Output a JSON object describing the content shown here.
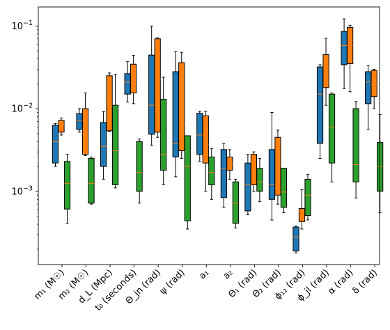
{
  "chart_data": {
    "type": "boxplot",
    "y_scale": "log",
    "ylim": [
      0.00013,
      0.17
    ],
    "y_ticks": [
      {
        "value": 0.001,
        "base": "10",
        "exp": "−3"
      },
      {
        "value": 0.01,
        "base": "10",
        "exp": "−2"
      },
      {
        "value": 0.1,
        "base": "10",
        "exp": "−1"
      }
    ],
    "grid": false,
    "legend": "none",
    "median_color": "#ff7f0e",
    "series_colors": [
      "#1f77b4",
      "#ff7f0e",
      "#2ca02c"
    ],
    "categories": [
      {
        "name": "m1",
        "label": "m₁ (M☉)"
      },
      {
        "name": "m2",
        "label": "m₂ (M☉)"
      },
      {
        "name": "dl",
        "label": "d_L (Mpc)"
      },
      {
        "name": "t0",
        "label": "t₀ (seconds)"
      },
      {
        "name": "theta-jn",
        "label": "Θ_jn (rad)"
      },
      {
        "name": "psi",
        "label": "ψ (rad)"
      },
      {
        "name": "a1",
        "label": "a₁"
      },
      {
        "name": "a2",
        "label": "a₂"
      },
      {
        "name": "theta1",
        "label": "Θ₁ (rad)"
      },
      {
        "name": "theta2",
        "label": "Θ₂ (rad)"
      },
      {
        "name": "phi12",
        "label": "ϕ₁₂ (rad)"
      },
      {
        "name": "phi-jl",
        "label": "ϕ_jl (rad)"
      },
      {
        "name": "alpha",
        "label": "α (rad)"
      },
      {
        "name": "delta",
        "label": "δ (rad)"
      }
    ],
    "series": [
      {
        "boxes": [
          {
            "whislo": 0.002,
            "q1": 0.0022,
            "med": 0.004,
            "q3": 0.0063,
            "whishi": 0.0066
          },
          {
            "whislo": 0.0052,
            "q1": 0.0056,
            "med": 0.0072,
            "q3": 0.0087,
            "whishi": 0.01
          },
          {
            "whislo": 0.0014,
            "q1": 0.002,
            "med": 0.0035,
            "q3": 0.0068,
            "whishi": 0.0092
          },
          {
            "whislo": 0.012,
            "q1": 0.015,
            "med": 0.021,
            "q3": 0.0265,
            "whishi": 0.037
          },
          {
            "whislo": 0.0036,
            "q1": 0.0049,
            "med": 0.011,
            "q3": 0.0445,
            "whishi": 0.1
          },
          {
            "whislo": 0.0015,
            "q1": 0.0026,
            "med": 0.0038,
            "q3": 0.028,
            "whishi": 0.049
          },
          {
            "whislo": 0.0023,
            "q1": 0.0028,
            "med": 0.0048,
            "q3": 0.0088,
            "whishi": 0.0093
          },
          {
            "whislo": 0.00064,
            "q1": 0.00084,
            "med": 0.0019,
            "q3": 0.0032,
            "whishi": 0.0038
          },
          {
            "whislo": 0.00052,
            "q1": 0.00058,
            "med": 0.0012,
            "q3": 0.0022,
            "whishi": 0.0028
          },
          {
            "whislo": 0.00045,
            "q1": 0.0008,
            "med": 0.0012,
            "q3": 0.0032,
            "whishi": 0.009
          },
          {
            "whislo": 0.00018,
            "q1": 0.00019,
            "med": 0.00028,
            "q3": 0.00037,
            "whishi": 0.00038
          },
          {
            "whislo": 0.0025,
            "q1": 0.0038,
            "med": 0.015,
            "q3": 0.032,
            "whishi": 0.034
          },
          {
            "whislo": 0.0175,
            "q1": 0.034,
            "med": 0.058,
            "q3": 0.086,
            "whishi": 0.122
          },
          {
            "whislo": 0.0056,
            "q1": 0.0115,
            "med": 0.021,
            "q3": 0.028,
            "whishi": 0.033
          }
        ]
      },
      {
        "boxes": [
          {
            "whislo": 0.0048,
            "q1": 0.0052,
            "med": 0.0065,
            "q3": 0.0072,
            "whishi": 0.0077
          },
          {
            "whislo": 0.0027,
            "q1": 0.0028,
            "med": 0.005,
            "q3": 0.01,
            "whishi": 0.0155
          },
          {
            "whislo": 0.0053,
            "q1": 0.0054,
            "med": 0.012,
            "q3": 0.025,
            "whishi": 0.027
          },
          {
            "whislo": 0.0115,
            "q1": 0.0155,
            "med": 0.0255,
            "q3": 0.0345,
            "whishi": 0.044
          },
          {
            "whislo": 0.0045,
            "q1": 0.0052,
            "med": 0.0225,
            "q3": 0.07,
            "whishi": 0.072
          },
          {
            "whislo": 0.0025,
            "q1": 0.0031,
            "med": 0.0065,
            "q3": 0.036,
            "whishi": 0.048
          },
          {
            "whislo": 0.001,
            "q1": 0.0022,
            "med": 0.0037,
            "q3": 0.0082,
            "whishi": 0.0093
          },
          {
            "whislo": 0.0014,
            "q1": 0.0018,
            "med": 0.0021,
            "q3": 0.0026,
            "whishi": 0.0032
          },
          {
            "whislo": 0.001,
            "q1": 0.0012,
            "med": 0.0023,
            "q3": 0.0028,
            "whishi": 0.003
          },
          {
            "whislo": 0.0007,
            "q1": 0.0009,
            "med": 0.0011,
            "q3": 0.0045,
            "whishi": 0.0055
          },
          {
            "whislo": 0.00035,
            "q1": 0.00043,
            "med": 0.00057,
            "q3": 0.00062,
            "whishi": 0.00105
          },
          {
            "whislo": 0.011,
            "q1": 0.018,
            "med": 0.031,
            "q3": 0.045,
            "whishi": 0.071
          },
          {
            "whislo": 0.016,
            "q1": 0.035,
            "med": 0.058,
            "q3": 0.096,
            "whishi": 0.102
          },
          {
            "whislo": 0.01,
            "q1": 0.014,
            "med": 0.0195,
            "q3": 0.029,
            "whishi": 0.03
          }
        ]
      },
      {
        "boxes": [
          {
            "whislo": 0.00041,
            "q1": 0.00061,
            "med": 0.00125,
            "q3": 0.0023,
            "whishi": 0.0028
          },
          {
            "whislo": 0.0007,
            "q1": 0.00072,
            "med": 0.00125,
            "q3": 0.0025,
            "whishi": 0.0026
          },
          {
            "whislo": 0.0011,
            "q1": 0.0012,
            "med": 0.0031,
            "q3": 0.011,
            "whishi": 0.026
          },
          {
            "whislo": 0.00072,
            "q1": 0.001,
            "med": 0.0017,
            "q3": 0.004,
            "whishi": 0.0043
          },
          {
            "whislo": 0.0012,
            "q1": 0.0018,
            "med": 0.0028,
            "q3": 0.013,
            "whishi": 0.024
          },
          {
            "whislo": 0.00035,
            "q1": 0.00044,
            "med": 0.002,
            "q3": 0.0047,
            "whishi": 0.0047
          },
          {
            "whislo": 0.0008,
            "q1": 0.0012,
            "med": 0.0017,
            "q3": 0.0026,
            "whishi": 0.0033
          },
          {
            "whislo": 0.00036,
            "q1": 0.00041,
            "med": 0.00072,
            "q3": 0.0013,
            "whishi": 0.0014
          },
          {
            "whislo": 0.00075,
            "q1": 0.001,
            "med": 0.0013,
            "q3": 0.0019,
            "whishi": 0.0025
          },
          {
            "whislo": 0.00055,
            "q1": 0.00064,
            "med": 0.00098,
            "q3": 0.0019,
            "whishi": 0.0019
          },
          {
            "whislo": 0.00045,
            "q1": 0.00051,
            "med": 0.0009,
            "q3": 0.0014,
            "whishi": 0.0016
          },
          {
            "whislo": 0.0013,
            "q1": 0.0022,
            "med": 0.006,
            "q3": 0.015,
            "whishi": 0.0155
          },
          {
            "whislo": 0.00083,
            "q1": 0.0013,
            "med": 0.0021,
            "q3": 0.01,
            "whishi": 0.0122
          },
          {
            "whislo": 0.00055,
            "q1": 0.001,
            "med": 0.002,
            "q3": 0.0039,
            "whishi": 0.0085
          }
        ]
      }
    ]
  }
}
